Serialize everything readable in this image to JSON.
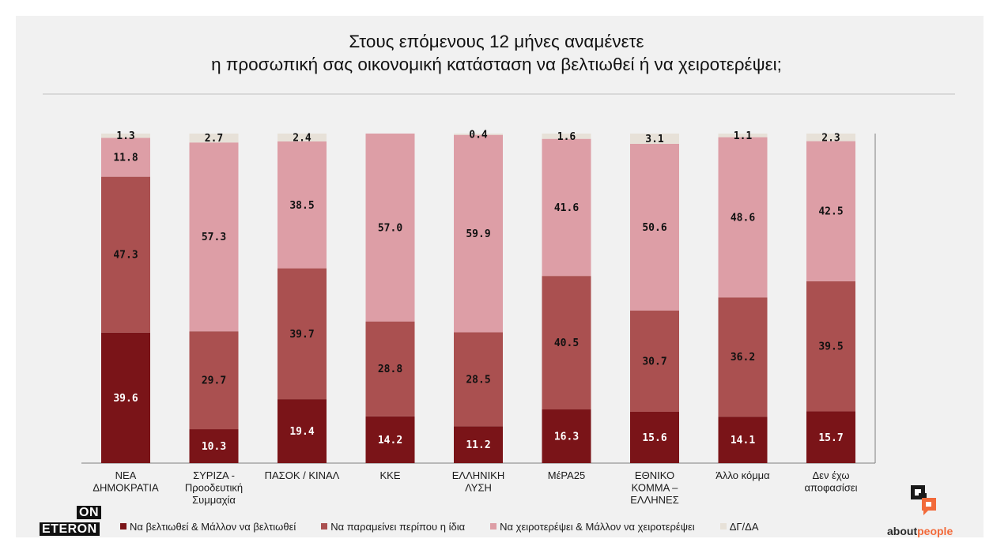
{
  "title": {
    "line1": "Στους επόμενους 12 μήνες αναμένετε",
    "line2": "η προσωπική σας οικονομική κατάσταση να βελτιωθεί ή να χειροτερέψει;"
  },
  "chart_data": {
    "type": "bar",
    "stacked": true,
    "ylim": [
      0,
      100
    ],
    "grid": false,
    "legend_placement": "bottom",
    "categories": [
      [
        "ΝΕΑ",
        "ΔΗΜΟΚΡΑΤΙΑ"
      ],
      [
        "ΣΥΡΙΖΑ -",
        "Προοδευτική",
        "Συμμαχία"
      ],
      [
        "ΠΑΣΟΚ / ΚΙΝΑΛ"
      ],
      [
        "ΚΚΕ"
      ],
      [
        "ΕΛΛΗΝΙΚΗ",
        "ΛΥΣΗ"
      ],
      [
        "ΜέΡΑ25"
      ],
      [
        "ΕΘΝΙΚΟ",
        "ΚΟΜΜΑ –",
        "ΕΛΛΗΝΕΣ"
      ],
      [
        "Άλλο κόμμα"
      ],
      [
        "Δεν έχω",
        "αποφασίσει"
      ]
    ],
    "series": [
      {
        "name": "Να βελτιωθεί & Μάλλον να βελτιωθεί",
        "color": "#7a1418",
        "label_color": "#ffffff",
        "values": [
          39.6,
          10.3,
          19.4,
          14.2,
          11.2,
          16.3,
          15.6,
          14.1,
          15.7
        ]
      },
      {
        "name": "Να παραμείνει περίπου η ίδια",
        "color": "#aa5050",
        "label_color": "#111111",
        "values": [
          47.3,
          29.7,
          39.7,
          28.8,
          28.5,
          40.5,
          30.7,
          36.2,
          39.5
        ]
      },
      {
        "name": "Να χειροτερέψει & Μάλλον να χειροτερέψει",
        "color": "#dd9ea6",
        "label_color": "#111111",
        "values": [
          11.8,
          57.3,
          38.5,
          57.0,
          59.9,
          41.6,
          50.6,
          48.6,
          42.5
        ]
      },
      {
        "name": "ΔΓ/ΔΑ",
        "color": "#e7e1d8",
        "label_color": "#111111",
        "values": [
          1.3,
          2.7,
          2.4,
          null,
          0.4,
          1.6,
          3.1,
          1.1,
          2.3
        ]
      }
    ],
    "label_format": "one_decimal"
  },
  "logos": {
    "left_top": "ON",
    "left_bottom": "ETERON",
    "right_prefix": "about",
    "right_suffix": "people"
  },
  "colors": {
    "panel_bg": "#f1f1f1",
    "accent": "#f26a3a"
  }
}
